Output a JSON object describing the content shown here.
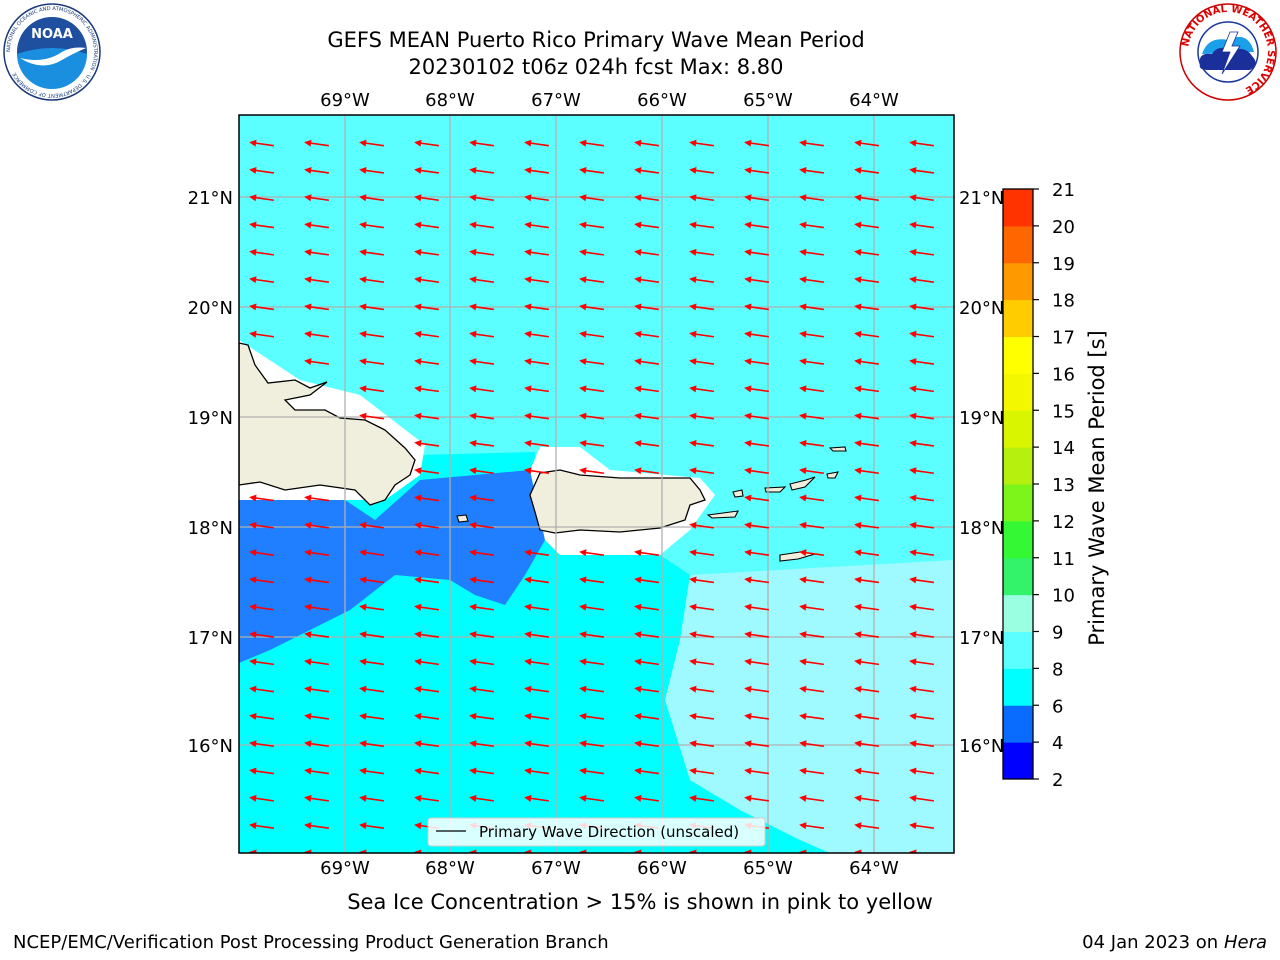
{
  "title_line1": "GEFS MEAN Puerto Rico Primary Wave Mean Period",
  "title_line2": "20230102 t06z 024h fcst   Max: 8.80",
  "lon_labels": [
    "69°W",
    "68°W",
    "67°W",
    "66°W",
    "65°W",
    "64°W"
  ],
  "lat_labels": [
    "21°N",
    "20°N",
    "19°N",
    "18°N",
    "17°N",
    "16°N"
  ],
  "legend_label": "Primary Wave Direction (unscaled)",
  "colorbar": {
    "label": "Primary Wave Mean Period [s]",
    "ticks": [
      "2",
      "4",
      "6",
      "8",
      "9",
      "10",
      "11",
      "12",
      "13",
      "14",
      "15",
      "16",
      "17",
      "18",
      "19",
      "20",
      "21"
    ],
    "colors": [
      "#0000ff",
      "#0a6bff",
      "#00ffff",
      "#5cffff",
      "#99ffe0",
      "#33f36b",
      "#33f833",
      "#7df51a",
      "#b5f00f",
      "#d9f500",
      "#f3f700",
      "#ffff00",
      "#ffcc00",
      "#ff9900",
      "#ff6600",
      "#ff3300",
      "#ff0000"
    ]
  },
  "field_colors": {
    "p4_6": "#1f7fff",
    "p6_8": "#00ffff",
    "p8_9": "#5cffff",
    "p8_9_south": "#9ffaff",
    "land": "#f0eedc",
    "arrow": "#ff0000"
  },
  "sea_ice_note": "Sea Ice Concentration > 15% is shown in pink to yellow",
  "footer_left": "NCEP/EMC/Verification Post Processing Product Generation Branch",
  "footer_right_prefix": "04 Jan 2023 on",
  "footer_right_host": "Hera",
  "logos": {
    "noaa_text": "NOAA",
    "noaa_ring": "NATIONAL OCEANIC AND ATMOSPHERIC ADMINISTRATION · U.S. DEPARTMENT OF COMMERCE",
    "nws_ring": "NATIONAL WEATHER SERVICE"
  }
}
